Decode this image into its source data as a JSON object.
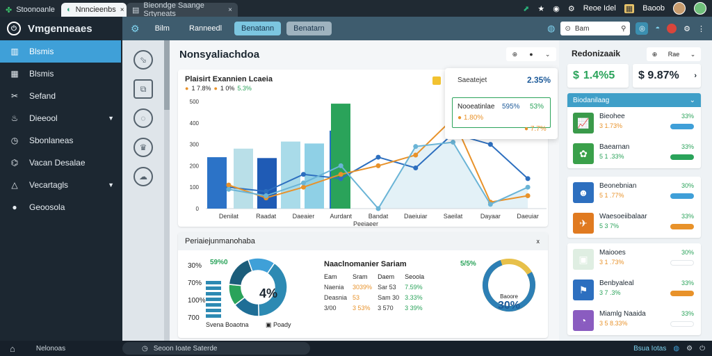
{
  "browser": {
    "tabs": [
      {
        "label": "Stoonoanle"
      },
      {
        "label": "Nnncieenbs"
      },
      {
        "label": "Bieondge Saange Srtyneats"
      }
    ],
    "right_labels": [
      "Reoe Idel",
      "Baoob"
    ],
    "tab_close": "×"
  },
  "sidebar": {
    "brand": "Vmgenneaes",
    "items": [
      {
        "label": "Blsmis",
        "icon": "chart-icon"
      },
      {
        "label": "Blsmis",
        "icon": "grid-icon"
      },
      {
        "label": "Sefand",
        "icon": "tools-icon"
      },
      {
        "label": "Dieeool",
        "icon": "flame-icon"
      },
      {
        "label": "Sbonlaneas",
        "icon": "clock-icon"
      },
      {
        "label": "Vacan Desalae",
        "icon": "network-icon"
      },
      {
        "label": "Vecartagls",
        "icon": "warning-icon"
      },
      {
        "label": "Geoosola",
        "icon": "drop-icon"
      }
    ]
  },
  "bottombar": {
    "left_label": "Nelonoas",
    "mid_label": "Seoon Ioate Saterde",
    "right_label": "Bsua Iotas"
  },
  "appbar": {
    "pills": [
      "Bilm",
      "Ranneedl",
      "Benatann",
      "Benatarn"
    ],
    "search_value": "Bam"
  },
  "main": {
    "title": "Nonsyaliachdoa",
    "tools": [
      "⊕",
      "●",
      "⌄"
    ]
  },
  "chart_data": {
    "type": "bar",
    "title": "Plaisirt Exannien Lcaeia",
    "subtitle": [
      "1 7.8%",
      "1 0%",
      "5.3%"
    ],
    "categories": [
      "Denilat",
      "Raadat",
      "Daeaier",
      "Aurdant",
      "Bandat",
      "Daeiuiar",
      "Saeilat",
      "Dayaar",
      "Daeuiar"
    ],
    "y_ticks": [
      "0",
      "100",
      "200",
      "300",
      "400",
      "500"
    ],
    "xlabel": "Peeiaeer",
    "ylim": [
      0,
      500
    ],
    "bars": [
      {
        "category": "Denilat",
        "value": 240,
        "color": "#2c73c7"
      },
      {
        "category": "Denilat",
        "value": 280,
        "color": "#b9dfe8"
      },
      {
        "category": "Raadat",
        "value": 236,
        "color": "#1f5bb5"
      },
      {
        "category": "Daeaier",
        "value": 313,
        "color": "#a9dbe9"
      },
      {
        "category": "Daeaier",
        "value": 304,
        "color": "#8fd0e6"
      },
      {
        "category": "Aurdant",
        "value": 364,
        "color": "#2470c2"
      },
      {
        "category": "Aurdant",
        "value": 490,
        "color": "#2aa35a"
      }
    ],
    "series": [
      {
        "name": "",
        "color": "#2d6fbf",
        "values": [
          100,
          80,
          160,
          140,
          240,
          190,
          350,
          300,
          140
        ]
      },
      {
        "name": "",
        "color": "#e8922a",
        "values": [
          110,
          50,
          100,
          160,
          200,
          250,
          420,
          30,
          60
        ]
      },
      {
        "name": "",
        "color": "#6ab4d6",
        "values": [
          90,
          60,
          120,
          200,
          0,
          290,
          310,
          20,
          100
        ]
      }
    ]
  },
  "tooltip": {
    "title": "Saeatejet",
    "value": "2.35%",
    "row1_label": "Nooeatinlae",
    "row1_v1": "595%",
    "row1_v2": "53%",
    "row2": "1.80%",
    "row3": "7.7%"
  },
  "bottom_card": {
    "title": "Periaiejunmanohaba",
    "close": "x",
    "mini_labels": [
      "30%",
      "70%",
      "100%",
      "700"
    ],
    "top_pct": "59%0",
    "donut_center": "4%",
    "donut_values": [
      40,
      15,
      12,
      18,
      15
    ],
    "caption_left": "Svena Boaotna",
    "caption_right": "Poady",
    "stats_title": "Naaclnomanier Sariam",
    "stats": [
      [
        "Eam",
        "Sram",
        "Daem",
        "Seoola"
      ],
      [
        "Naenia",
        "3039%",
        "Sar 53",
        "7.59%"
      ],
      [
        "Deasnia",
        "53",
        "Sam 30",
        "3.33%"
      ],
      [
        "3/00",
        "3 53%",
        "3 570",
        "3 39%"
      ]
    ],
    "right_pct": "5/5%",
    "donut2_label": "Baoore",
    "donut2_value": "30%",
    "donut2_fraction": 0.78
  },
  "rpanel": {
    "title": "Redonizaaik",
    "tools": [
      "⊕",
      "Rae",
      "⌄"
    ],
    "kpi1": "1.4%5",
    "kpi2": "$ 9.87%",
    "group_head": "Biodanilaag",
    "groups": [
      [
        {
          "name": "Bieohee",
          "sub": "3 1.73%",
          "pct": "33%",
          "bar": "#3f9fd8",
          "thumb": "#3a9a4a",
          "icon": "📈"
        },
        {
          "name": "Baearnan",
          "sub": "5 1 .33%",
          "pct": "33%",
          "bar": "#2aa35a",
          "thumb": "#3aa04a",
          "icon": "✿"
        }
      ],
      [
        {
          "name": "Beonebnian",
          "sub": "5 1 .77%",
          "pct": "30%",
          "bar": "#3f9fd8",
          "thumb": "#2d6fbf",
          "icon": "☻"
        },
        {
          "name": "Waesoeiibalaar",
          "sub": "5 3 7%",
          "pct": "33%",
          "bar": "#e8922a",
          "thumb": "#e07a20",
          "icon": "✈"
        }
      ],
      [
        {
          "name": "Maiooes",
          "sub": "3 1 .73%",
          "pct": "30%",
          "bar": "#ffffff",
          "thumb": "#dfeee2",
          "icon": "▣"
        },
        {
          "name": "Benbyaleal",
          "sub": "3 7 .3%",
          "pct": "33%",
          "bar": "#e8922a",
          "thumb": "#2d6fbf",
          "icon": "⚑"
        },
        {
          "name": "Miamlg Naaida",
          "sub": "3 5 8.33%",
          "pct": "33%",
          "bar": "#ffffff",
          "thumb": "#8a5cc0",
          "icon": "◔"
        }
      ]
    ]
  }
}
